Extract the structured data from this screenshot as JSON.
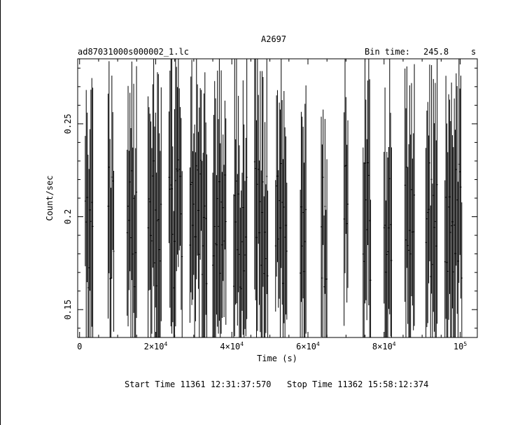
{
  "chart_data": {
    "type": "line",
    "title": "A2697",
    "subtitle_left": "ad87031000s000002_1.lc",
    "bin_time_label": "Bin time:",
    "bin_time_value": "245.8",
    "bin_time_unit": "s",
    "xlabel": "Time (s)",
    "ylabel": "Count/sec",
    "xlim": [
      -500,
      104500
    ],
    "ylim": [
      0.135,
      0.285
    ],
    "x_ticks": [
      {
        "value": 0,
        "mant": "0",
        "exp": ""
      },
      {
        "value": 20000,
        "mant": "2×10",
        "exp": "4"
      },
      {
        "value": 40000,
        "mant": "4×10",
        "exp": "4"
      },
      {
        "value": 60000,
        "mant": "6×10",
        "exp": "4"
      },
      {
        "value": 80000,
        "mant": "8×10",
        "exp": "4"
      },
      {
        "value": 100000,
        "mant": "10",
        "exp": "5"
      }
    ],
    "y_ticks": [
      {
        "value": 0.15,
        "label": "0.15"
      },
      {
        "value": 0.2,
        "label": "0.2"
      },
      {
        "value": 0.25,
        "label": "0.25"
      }
    ],
    "orbit_segments": [
      [
        1500,
        3500
      ],
      [
        7500,
        9000
      ],
      [
        12500,
        15000
      ],
      [
        18000,
        21500
      ],
      [
        23500,
        27000
      ],
      [
        29000,
        33500
      ],
      [
        35000,
        38500
      ],
      [
        40500,
        44000
      ],
      [
        46000,
        49500
      ],
      [
        51500,
        54500
      ],
      [
        58000,
        59500
      ],
      [
        63500,
        65000
      ],
      [
        69500,
        70500
      ],
      [
        74500,
        76500
      ],
      [
        80000,
        82000
      ],
      [
        85500,
        88000
      ],
      [
        91000,
        94000
      ],
      [
        96000,
        100500
      ]
    ],
    "footer_start": "Start Time 11361 12:31:37:570",
    "footer_stop": "Stop Time 11362 15:58:12:374"
  }
}
